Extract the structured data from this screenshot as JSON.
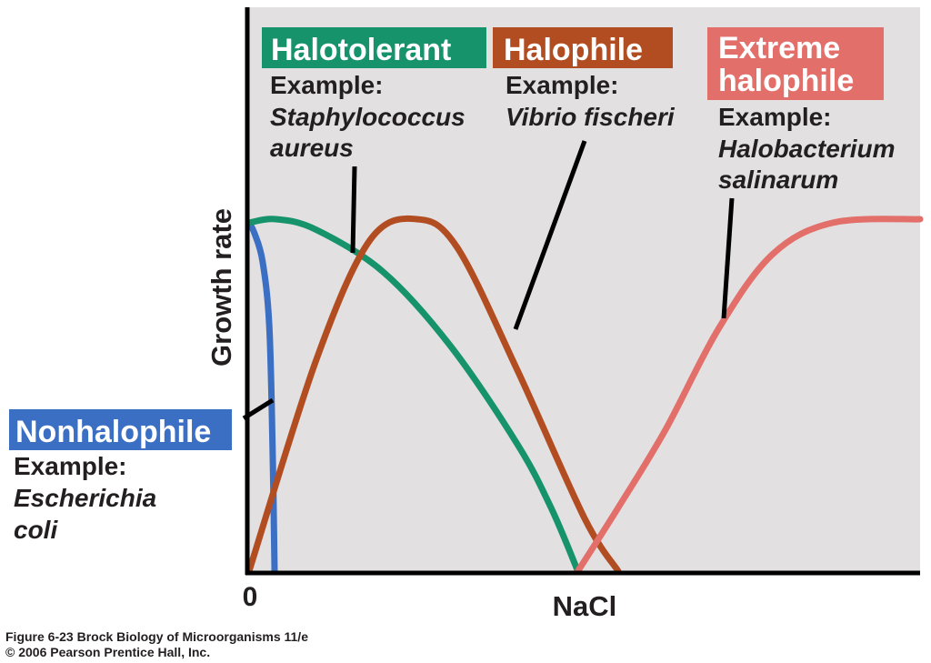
{
  "chart_data": {
    "type": "line",
    "xlabel": "NaCl",
    "ylabel": "Growth rate",
    "x_tick_labels": [
      "0"
    ],
    "series": [
      {
        "key": "nonhalophile",
        "name": "Nonhalophile",
        "example_label": "Example:",
        "example_lines": [
          "Escherichia",
          "coli"
        ],
        "color": "#3b6fc4",
        "points": [
          [
            0,
            0.99
          ],
          [
            0.008,
            0.96
          ],
          [
            0.02,
            0.88
          ],
          [
            0.03,
            0.7
          ],
          [
            0.035,
            0.35
          ],
          [
            0.038,
            0.0
          ]
        ]
      },
      {
        "key": "halotolerant",
        "name": "Halotolerant",
        "example_label": "Example:",
        "example_lines": [
          "Staphylococcus",
          "aureus"
        ],
        "color": "#16936a",
        "points": [
          [
            0,
            0.99
          ],
          [
            0.04,
            1.0
          ],
          [
            0.1,
            0.97
          ],
          [
            0.2,
            0.85
          ],
          [
            0.3,
            0.64
          ],
          [
            0.4,
            0.36
          ],
          [
            0.45,
            0.18
          ],
          [
            0.49,
            0.0
          ]
        ]
      },
      {
        "key": "halophile",
        "name": "Halophile",
        "example_label": "Example:",
        "example_lines": [
          "Vibrio fischeri"
        ],
        "color": "#b24d22",
        "points": [
          [
            0,
            0.0
          ],
          [
            0.1,
            0.6
          ],
          [
            0.18,
            0.94
          ],
          [
            0.25,
            1.0
          ],
          [
            0.31,
            0.92
          ],
          [
            0.4,
            0.57
          ],
          [
            0.5,
            0.15
          ],
          [
            0.55,
            0.0
          ]
        ]
      },
      {
        "key": "extreme_halophile",
        "name": "Extreme halophile",
        "name_lines": [
          "Extreme",
          "halophile"
        ],
        "example_label": "Example:",
        "example_lines": [
          "Halobacterium",
          "salinarum"
        ],
        "color": "#e26f6a",
        "points": [
          [
            0.49,
            0.0
          ],
          [
            0.55,
            0.18
          ],
          [
            0.62,
            0.4
          ],
          [
            0.7,
            0.69
          ],
          [
            0.78,
            0.9
          ],
          [
            0.87,
            0.99
          ],
          [
            1.0,
            1.0
          ]
        ]
      }
    ],
    "grid": false,
    "legend": "inline labels with pointer lines"
  },
  "credit": {
    "line1": "Figure 6-23  Brock Biology of Microorganisms 11/e",
    "line2": "© 2006 Pearson Prentice Hall, Inc."
  }
}
